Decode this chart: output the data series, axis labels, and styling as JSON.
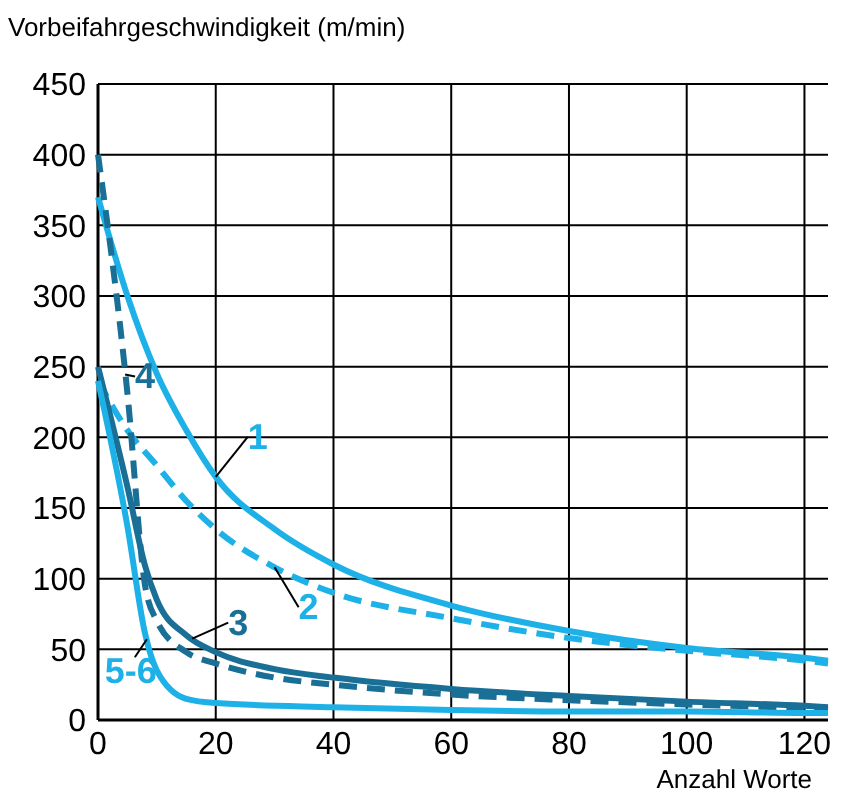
{
  "chart_data": {
    "type": "line",
    "ylabel": "Vorbeifahrgeschwindigkeit (m/min)",
    "xlabel": "Anzahl Worte",
    "xlim": [
      0,
      124
    ],
    "ylim": [
      0,
      450
    ],
    "xticks": [
      0,
      20,
      40,
      60,
      80,
      100,
      120
    ],
    "yticks": [
      0,
      50,
      100,
      150,
      200,
      250,
      300,
      350,
      400,
      450
    ],
    "grid": true,
    "series": [
      {
        "name": "1",
        "color": "#1eb1e7",
        "line_style": "solid",
        "x": [
          0,
          5,
          10,
          15,
          20,
          30,
          40,
          60,
          80,
          100,
          120,
          124
        ],
        "values": [
          370,
          300,
          245,
          205,
          172,
          135,
          110,
          81,
          63,
          51,
          44,
          42
        ]
      },
      {
        "name": "2",
        "color": "#1eb1e7",
        "line_style": "dashed",
        "x": [
          0,
          5,
          10,
          15,
          20,
          30,
          40,
          60,
          80,
          100,
          120,
          124
        ],
        "values": [
          240,
          205,
          180,
          155,
          135,
          108,
          90,
          72,
          58,
          49,
          42,
          40
        ]
      },
      {
        "name": "3",
        "color": "#1a6f96",
        "line_style": "solid",
        "x": [
          0,
          5,
          8,
          10,
          15,
          20,
          30,
          40,
          60,
          80,
          100,
          120,
          124
        ],
        "values": [
          250,
          165,
          109,
          85,
          60,
          48,
          36,
          30,
          22,
          17,
          13,
          10,
          9
        ]
      },
      {
        "name": "4",
        "color": "#1a6f96",
        "line_style": "dashed",
        "x": [
          0,
          5,
          8,
          10,
          15,
          20,
          30,
          40,
          60,
          80,
          100,
          120,
          124
        ],
        "values": [
          400,
          231,
          95,
          70,
          48,
          40,
          30,
          25,
          18,
          14,
          11,
          8,
          7
        ]
      },
      {
        "name": "5-6",
        "color": "#1eb1e7",
        "line_style": "solid",
        "x": [
          0,
          5,
          8,
          10,
          15,
          20,
          40,
          60,
          80,
          100,
          120,
          124
        ],
        "values": [
          240,
          137,
          61,
          35,
          15,
          12,
          9,
          7,
          6,
          6,
          5,
          5
        ]
      }
    ]
  }
}
